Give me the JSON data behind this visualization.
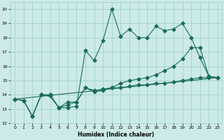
{
  "xlabel": "Humidex (Indice chaleur)",
  "bg_color": "#cceae7",
  "grid_color": "#99ccc8",
  "line_color": "#1a6b5e",
  "xlim": [
    -0.5,
    23.5
  ],
  "ylim": [
    12,
    20.5
  ],
  "xticks": [
    0,
    1,
    2,
    3,
    4,
    5,
    6,
    7,
    8,
    9,
    10,
    11,
    12,
    13,
    14,
    15,
    16,
    17,
    18,
    19,
    20,
    21,
    22,
    23
  ],
  "yticks": [
    12,
    13,
    14,
    15,
    16,
    17,
    18,
    19,
    20
  ],
  "series1_x": [
    0,
    1,
    2,
    3,
    4,
    5,
    6,
    7,
    8,
    9,
    10,
    11,
    12,
    13,
    14,
    15,
    16,
    17,
    18,
    19,
    20,
    21,
    22,
    23
  ],
  "series1_y": [
    13.7,
    13.6,
    12.5,
    14.0,
    14.0,
    13.1,
    13.1,
    13.2,
    17.1,
    16.4,
    17.8,
    20.0,
    18.1,
    18.6,
    18.0,
    18.0,
    18.8,
    18.5,
    18.6,
    19.0,
    18.0,
    16.6,
    15.3,
    15.2
  ],
  "series2_x": [
    0,
    1,
    2,
    3,
    4,
    5,
    6,
    7,
    8,
    9,
    10,
    11,
    12,
    13,
    14,
    15,
    16,
    17,
    18,
    19,
    20,
    21,
    22,
    23
  ],
  "series2_y": [
    13.7,
    13.6,
    12.5,
    14.0,
    13.9,
    13.1,
    13.5,
    13.5,
    14.5,
    14.2,
    14.3,
    14.5,
    14.5,
    14.6,
    14.7,
    14.7,
    14.8,
    14.8,
    14.9,
    15.0,
    15.1,
    15.2,
    15.2,
    15.2
  ],
  "series3_x": [
    0,
    23
  ],
  "series3_y": [
    13.7,
    15.2
  ],
  "series4_x": [
    0,
    1,
    2,
    3,
    4,
    5,
    6,
    7,
    8,
    9,
    10,
    11,
    12,
    13,
    14,
    15,
    16,
    17,
    18,
    19,
    20,
    21,
    22,
    23
  ],
  "series4_y": [
    13.7,
    13.6,
    12.5,
    14.0,
    14.0,
    13.1,
    13.3,
    13.5,
    14.5,
    14.3,
    14.4,
    14.5,
    14.8,
    15.0,
    15.1,
    15.2,
    15.4,
    15.7,
    16.0,
    16.5,
    17.3,
    17.3,
    15.3,
    15.2
  ]
}
